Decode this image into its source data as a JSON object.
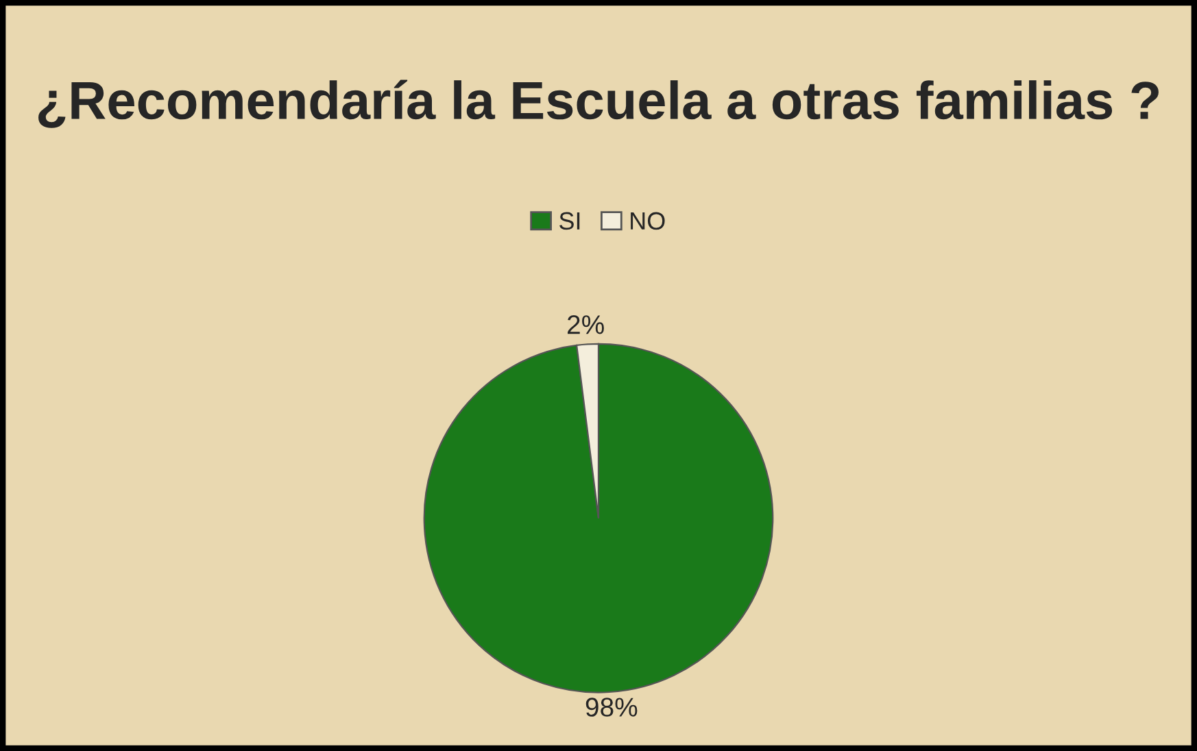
{
  "chart_data": {
    "type": "pie",
    "title": "¿Recomendaría la Escuela a otras familias ?",
    "categories": [
      "SI",
      "NO"
    ],
    "values": [
      98,
      2
    ],
    "colors": [
      "#1a7a1a",
      "#f4eedc"
    ],
    "value_labels": [
      "98%",
      "2%"
    ],
    "legend": "top"
  }
}
